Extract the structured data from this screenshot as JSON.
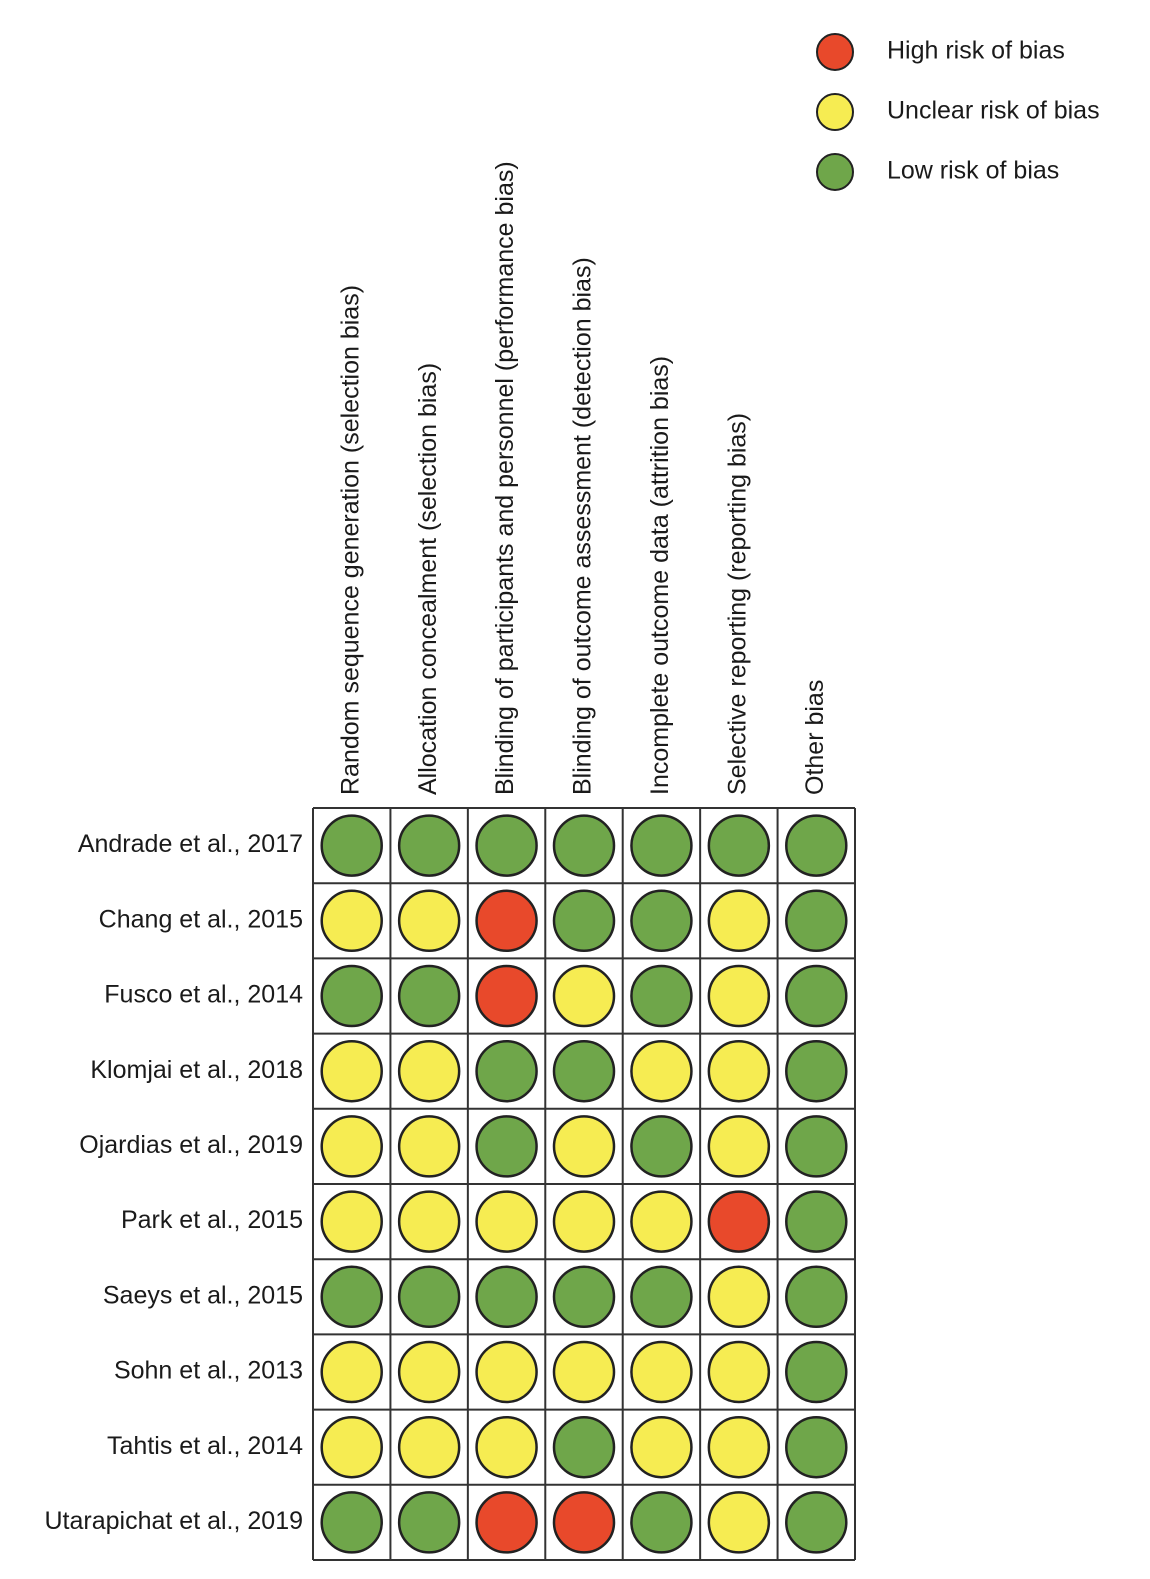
{
  "legend": [
    {
      "label": "High risk of bias",
      "color": "#e8492b"
    },
    {
      "label": "Unclear risk of bias",
      "color": "#f6ec52"
    },
    {
      "label": "Low risk of bias",
      "color": "#6fa64a"
    }
  ],
  "table": {
    "columns": [
      "Random sequence generation (selection bias)",
      "Allocation concealment (selection bias)",
      "Blinding of participants and personnel (performance bias)",
      "Blinding of outcome assessment (detection bias)",
      "Incomplete outcome data (attrition bias)",
      "Selective reporting (reporting bias)",
      "Other bias"
    ],
    "rows": [
      {
        "study": "Andrade et al., 2017",
        "cells": [
          "Low risk of bias",
          "Low risk of bias",
          "Low risk of bias",
          "Low risk of bias",
          "Low risk of bias",
          "Low risk of bias",
          "Low risk of bias"
        ]
      },
      {
        "study": "Chang et al., 2015",
        "cells": [
          "Unclear risk of bias",
          "Unclear risk of bias",
          "High risk of bias",
          "Low risk of bias",
          "Low risk of bias",
          "Unclear risk of bias",
          "Low risk of bias"
        ]
      },
      {
        "study": "Fusco et al., 2014",
        "cells": [
          "Low risk of bias",
          "Low risk of bias",
          "High risk of bias",
          "Unclear risk of bias",
          "Low risk of bias",
          "Unclear risk of bias",
          "Low risk of bias"
        ]
      },
      {
        "study": "Klomjai et al., 2018",
        "cells": [
          "Unclear risk of bias",
          "Unclear risk of bias",
          "Low risk of bias",
          "Low risk of bias",
          "Unclear risk of bias",
          "Unclear risk of bias",
          "Low risk of bias"
        ]
      },
      {
        "study": "Ojardias et al., 2019",
        "cells": [
          "Unclear risk of bias",
          "Unclear risk of bias",
          "Low risk of bias",
          "Unclear risk of bias",
          "Low risk of bias",
          "Unclear risk of bias",
          "Low risk of bias"
        ]
      },
      {
        "study": "Park et al., 2015",
        "cells": [
          "Unclear risk of bias",
          "Unclear risk of bias",
          "Unclear risk of bias",
          "Unclear risk of bias",
          "Unclear risk of bias",
          "High risk of bias",
          "Low risk of bias"
        ]
      },
      {
        "study": "Saeys et al., 2015",
        "cells": [
          "Low risk of bias",
          "Low risk of bias",
          "Low risk of bias",
          "Low risk of bias",
          "Low risk of bias",
          "Unclear risk of bias",
          "Low risk of bias"
        ]
      },
      {
        "study": "Sohn et al., 2013",
        "cells": [
          "Unclear risk of bias",
          "Unclear risk of bias",
          "Unclear risk of bias",
          "Unclear risk of bias",
          "Unclear risk of bias",
          "Unclear risk of bias",
          "Low risk of bias"
        ]
      },
      {
        "study": "Tahtis et al., 2014",
        "cells": [
          "Unclear risk of bias",
          "Unclear risk of bias",
          "Unclear risk of bias",
          "Low risk of bias",
          "Unclear risk of bias",
          "Unclear risk of bias",
          "Low risk of bias"
        ]
      },
      {
        "study": "Utarapichat et al., 2019",
        "cells": [
          "Low risk of bias",
          "Low risk of bias",
          "High risk of bias",
          "High risk of bias",
          "Low risk of bias",
          "Unclear risk of bias",
          "Low risk of bias"
        ]
      }
    ]
  }
}
